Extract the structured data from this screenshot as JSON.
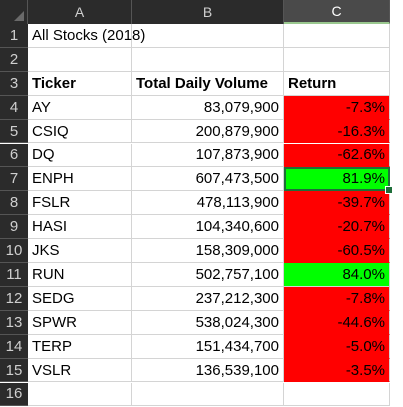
{
  "columns": [
    "A",
    "B",
    "C"
  ],
  "selected_column": "C",
  "title_cell": "All Stocks (2018)",
  "headers": {
    "ticker": "Ticker",
    "volume": "Total Daily Volume",
    "return": "Return"
  },
  "rows": [
    {
      "row": "4",
      "ticker": "AY",
      "volume": "83,079,900",
      "return": "-7.3%",
      "status": "negative"
    },
    {
      "row": "5",
      "ticker": "CSIQ",
      "volume": "200,879,900",
      "return": "-16.3%",
      "status": "negative"
    },
    {
      "row": "6",
      "ticker": "DQ",
      "volume": "107,873,900",
      "return": "-62.6%",
      "status": "negative"
    },
    {
      "row": "7",
      "ticker": "ENPH",
      "volume": "607,473,500",
      "return": "81.9%",
      "status": "positive"
    },
    {
      "row": "8",
      "ticker": "FSLR",
      "volume": "478,113,900",
      "return": "-39.7%",
      "status": "negative"
    },
    {
      "row": "9",
      "ticker": "HASI",
      "volume": "104,340,600",
      "return": "-20.7%",
      "status": "negative"
    },
    {
      "row": "10",
      "ticker": "JKS",
      "volume": "158,309,000",
      "return": "-60.5%",
      "status": "negative"
    },
    {
      "row": "11",
      "ticker": "RUN",
      "volume": "502,757,100",
      "return": "84.0%",
      "status": "positive"
    },
    {
      "row": "12",
      "ticker": "SEDG",
      "volume": "237,212,300",
      "return": "-7.8%",
      "status": "negative"
    },
    {
      "row": "13",
      "ticker": "SPWR",
      "volume": "538,024,300",
      "return": "-44.6%",
      "status": "negative"
    },
    {
      "row": "14",
      "ticker": "TERP",
      "volume": "151,434,700",
      "return": "-5.0%",
      "status": "negative"
    },
    {
      "row": "15",
      "ticker": "VSLR",
      "volume": "136,539,100",
      "return": "-3.5%",
      "status": "negative"
    }
  ],
  "row_numbers": [
    "1",
    "2",
    "3",
    "4",
    "5",
    "6",
    "7",
    "8",
    "9",
    "10",
    "11",
    "12",
    "13",
    "14",
    "15",
    "16"
  ],
  "active_cell": "C7",
  "colors": {
    "negative": "#ff0000",
    "positive": "#00ff00",
    "header_bg": "#2b2b2b",
    "selection": "#1e6e3a"
  }
}
